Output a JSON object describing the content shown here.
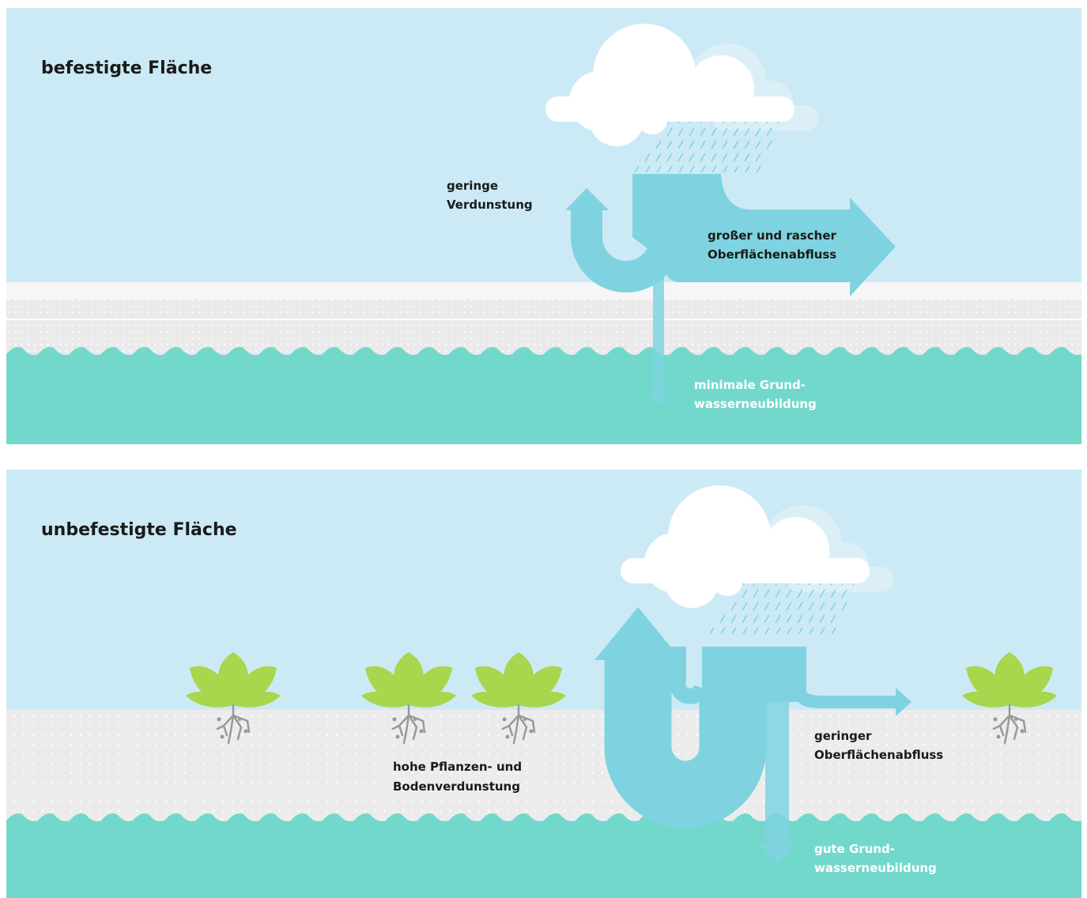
{
  "panels": [
    {
      "title": "befestigte Fläche",
      "labels": [
        {
          "lines": [
            "geringe",
            "Verdunstung"
          ]
        },
        {
          "lines": [
            "großer und rascher",
            "Oberflächenabfluss"
          ]
        },
        {
          "lines": [
            "minimale Grund-",
            "wasserneubildung"
          ]
        }
      ]
    },
    {
      "title": "unbefestigte Fläche",
      "labels": [
        {
          "lines": [
            "hohe Pflanzen- und",
            "Bodenverdunstung"
          ]
        },
        {
          "lines": [
            "geringer",
            "Oberflächenabfluss"
          ]
        },
        {
          "lines": [
            "gute Grund-",
            "wasserneubildung"
          ]
        }
      ]
    }
  ]
}
